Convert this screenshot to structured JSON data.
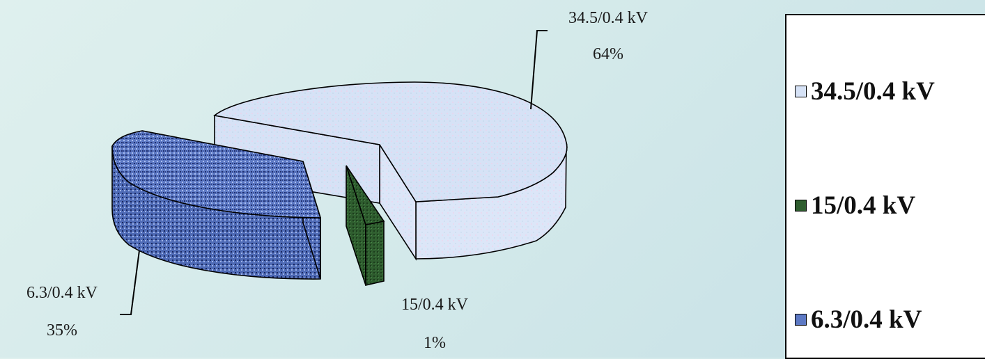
{
  "chart_data": {
    "type": "pie",
    "style": "3d-exploded",
    "slices": [
      {
        "name": "34.5/0.4 kV",
        "value": 64,
        "pct_label": "64%",
        "color": "#d6e2f6"
      },
      {
        "name": "15/0.4 kV",
        "value": 1,
        "pct_label": "1%",
        "color": "#2f5e2f"
      },
      {
        "name": "6.3/0.4 kV",
        "value": 35,
        "pct_label": "35%",
        "color": "#5d79c4"
      }
    ],
    "legend_position": "right"
  },
  "legend": {
    "items": [
      {
        "label": "34.5/0.4 kV",
        "color": "#d6e2f6"
      },
      {
        "label": "15/0.4 kV",
        "color": "#2f5e2f"
      },
      {
        "label": "6.3/0.4 kV",
        "color": "#5d79c4"
      }
    ]
  }
}
